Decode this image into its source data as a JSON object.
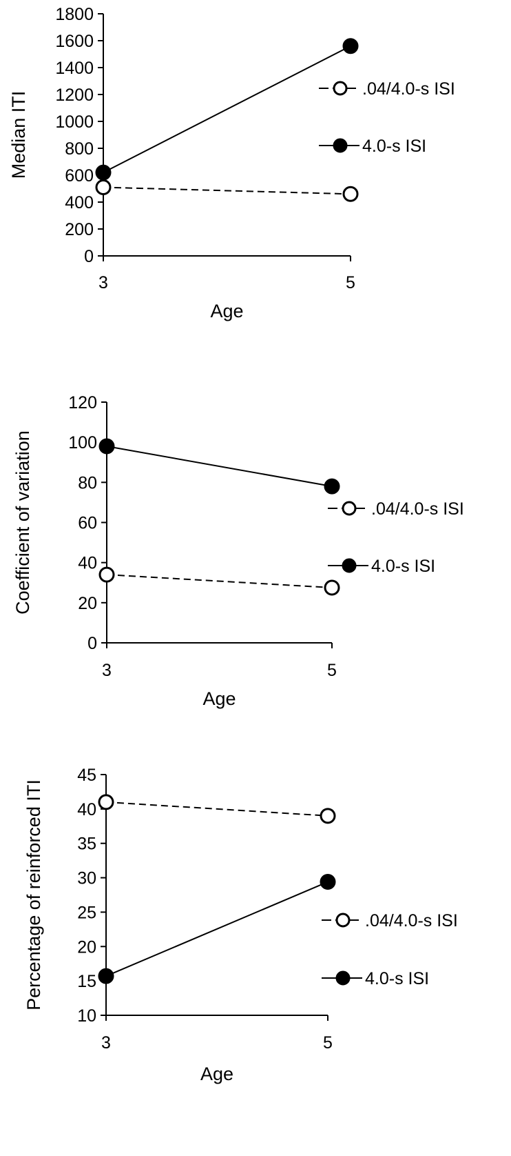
{
  "colors": {
    "axis": "#000000",
    "open_marker_fill": "#ffffff",
    "filled_marker_fill": "#000000",
    "background": "#ffffff"
  },
  "chart_data": [
    {
      "type": "line",
      "x": [
        3,
        5
      ],
      "xlabel": "Age",
      "ylabel": "Median ITI",
      "ylim": [
        0,
        1800
      ],
      "yticks": [
        0,
        200,
        400,
        600,
        800,
        1000,
        1200,
        1400,
        1600,
        1800
      ],
      "xticks": [
        3,
        5
      ],
      "grid": false,
      "legend_position": "right",
      "series": [
        {
          "name": ".04/4.0-s ISI",
          "values": [
            510,
            460
          ],
          "line": "dashed",
          "marker": "open-circle"
        },
        {
          "name": "4.0-s ISI",
          "values": [
            620,
            1560
          ],
          "line": "solid",
          "marker": "filled-circle"
        }
      ]
    },
    {
      "type": "line",
      "x": [
        3,
        5
      ],
      "xlabel": "Age",
      "ylabel": "Coefficient of variation",
      "ylim": [
        0,
        120
      ],
      "yticks": [
        0,
        20,
        40,
        60,
        80,
        100,
        120
      ],
      "xticks": [
        3,
        5
      ],
      "grid": false,
      "legend_position": "right",
      "series": [
        {
          "name": ".04/4.0-s ISI",
          "values": [
            34,
            27.5
          ],
          "line": "dashed",
          "marker": "open-circle"
        },
        {
          "name": "4.0-s ISI",
          "values": [
            98,
            78
          ],
          "line": "solid",
          "marker": "filled-circle"
        }
      ]
    },
    {
      "type": "line",
      "x": [
        3,
        5
      ],
      "xlabel": "Age",
      "ylabel": "Percentage of reinforced ITI",
      "ylim": [
        10,
        45
      ],
      "yticks": [
        10,
        15,
        20,
        25,
        30,
        35,
        40,
        45
      ],
      "xticks": [
        3,
        5
      ],
      "grid": false,
      "legend_position": "right",
      "series": [
        {
          "name": ".04/4.0-s ISI",
          "values": [
            41,
            39
          ],
          "line": "dashed",
          "marker": "open-circle"
        },
        {
          "name": "4.0-s ISI",
          "values": [
            15.7,
            29.4
          ],
          "line": "solid",
          "marker": "filled-circle"
        }
      ]
    }
  ]
}
